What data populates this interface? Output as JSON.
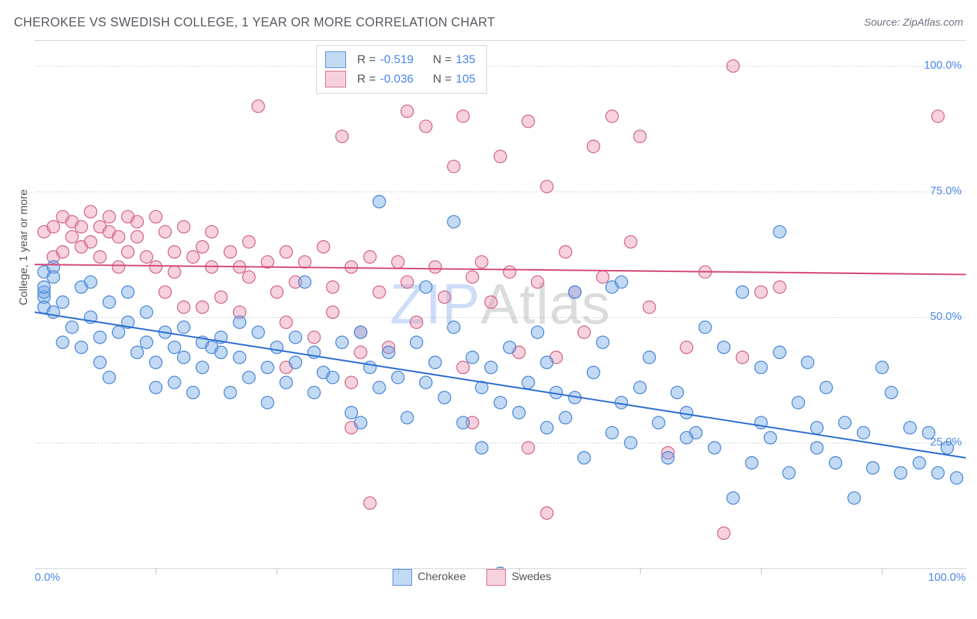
{
  "title": "CHEROKEE VS SWEDISH COLLEGE, 1 YEAR OR MORE CORRELATION CHART",
  "source": "Source: ZipAtlas.com",
  "ylabel": "College, 1 year or more",
  "watermark_a": "ZIP",
  "watermark_b": "Atlas",
  "chart": {
    "type": "scatter",
    "xlim": [
      0,
      100
    ],
    "ylim": [
      0,
      105
    ],
    "y_ticks": [
      {
        "v": 25,
        "label": "25.0%"
      },
      {
        "v": 50,
        "label": "50.0%"
      },
      {
        "v": 75,
        "label": "75.0%"
      },
      {
        "v": 100,
        "label": "100.0%"
      }
    ],
    "x_tick_left": "0.0%",
    "x_tick_right": "100.0%",
    "x_minor_ticks": [
      13,
      26,
      39,
      52,
      65,
      78,
      91
    ],
    "grid_color": "#d6d9de",
    "background_color": "#ffffff",
    "marker_radius": 9,
    "marker_stroke_width": 1.4,
    "trend_width": 2.2
  },
  "series": {
    "a": {
      "name": "Cherokee",
      "color_fill": "rgba(111,168,232,0.42)",
      "color_stroke": "#508bd8",
      "trend_color": "#2f6fd0",
      "R": "-0.519",
      "N": "135",
      "trend": {
        "y_at_x0": 51,
        "y_at_x100": 22
      },
      "points": [
        [
          1,
          59
        ],
        [
          1,
          54
        ],
        [
          1,
          52
        ],
        [
          1,
          55
        ],
        [
          2,
          51
        ],
        [
          2,
          60
        ],
        [
          3,
          45
        ],
        [
          3,
          53
        ],
        [
          4,
          48
        ],
        [
          5,
          56
        ],
        [
          5,
          44
        ],
        [
          6,
          57
        ],
        [
          6,
          50
        ],
        [
          7,
          46
        ],
        [
          7,
          41
        ],
        [
          8,
          53
        ],
        [
          8,
          38
        ],
        [
          9,
          47
        ],
        [
          10,
          55
        ],
        [
          10,
          49
        ],
        [
          11,
          43
        ],
        [
          12,
          45
        ],
        [
          12,
          51
        ],
        [
          13,
          41
        ],
        [
          13,
          36
        ],
        [
          14,
          47
        ],
        [
          15,
          37
        ],
        [
          15,
          44
        ],
        [
          16,
          42
        ],
        [
          16,
          48
        ],
        [
          17,
          35
        ],
        [
          18,
          45
        ],
        [
          18,
          40
        ],
        [
          19,
          44
        ],
        [
          20,
          43
        ],
        [
          20,
          46
        ],
        [
          21,
          35
        ],
        [
          22,
          42
        ],
        [
          22,
          49
        ],
        [
          23,
          38
        ],
        [
          24,
          47
        ],
        [
          25,
          40
        ],
        [
          25,
          33
        ],
        [
          26,
          44
        ],
        [
          27,
          37
        ],
        [
          28,
          46
        ],
        [
          28,
          41
        ],
        [
          29,
          57
        ],
        [
          30,
          35
        ],
        [
          30,
          43
        ],
        [
          31,
          39
        ],
        [
          32,
          38
        ],
        [
          33,
          45
        ],
        [
          34,
          31
        ],
        [
          35,
          47
        ],
        [
          35,
          29
        ],
        [
          36,
          40
        ],
        [
          37,
          73
        ],
        [
          37,
          36
        ],
        [
          38,
          43
        ],
        [
          39,
          38
        ],
        [
          40,
          30
        ],
        [
          41,
          45
        ],
        [
          42,
          37
        ],
        [
          42,
          56
        ],
        [
          43,
          41
        ],
        [
          44,
          34
        ],
        [
          45,
          48
        ],
        [
          45,
          69
        ],
        [
          46,
          29
        ],
        [
          47,
          42
        ],
        [
          48,
          36
        ],
        [
          48,
          24
        ],
        [
          49,
          40
        ],
        [
          50,
          33
        ],
        [
          50,
          -1
        ],
        [
          51,
          44
        ],
        [
          52,
          31
        ],
        [
          53,
          37
        ],
        [
          54,
          47
        ],
        [
          55,
          28
        ],
        [
          55,
          41
        ],
        [
          56,
          35
        ],
        [
          57,
          30
        ],
        [
          58,
          34
        ],
        [
          59,
          22
        ],
        [
          60,
          39
        ],
        [
          61,
          45
        ],
        [
          62,
          56
        ],
        [
          62,
          27
        ],
        [
          63,
          33
        ],
        [
          64,
          25
        ],
        [
          65,
          36
        ],
        [
          66,
          42
        ],
        [
          67,
          29
        ],
        [
          68,
          22
        ],
        [
          69,
          35
        ],
        [
          70,
          31
        ],
        [
          71,
          27
        ],
        [
          72,
          48
        ],
        [
          73,
          24
        ],
        [
          74,
          44
        ],
        [
          75,
          14
        ],
        [
          76,
          55
        ],
        [
          77,
          21
        ],
        [
          78,
          40
        ],
        [
          78,
          29
        ],
        [
          79,
          26
        ],
        [
          80,
          43
        ],
        [
          80,
          67
        ],
        [
          81,
          19
        ],
        [
          82,
          33
        ],
        [
          83,
          41
        ],
        [
          84,
          24
        ],
        [
          85,
          36
        ],
        [
          86,
          21
        ],
        [
          87,
          29
        ],
        [
          88,
          14
        ],
        [
          89,
          27
        ],
        [
          90,
          20
        ],
        [
          91,
          40
        ],
        [
          92,
          35
        ],
        [
          93,
          19
        ],
        [
          94,
          28
        ],
        [
          95,
          21
        ],
        [
          96,
          27
        ],
        [
          97,
          19
        ],
        [
          98,
          24
        ],
        [
          99,
          18
        ],
        [
          84,
          28
        ],
        [
          70,
          26
        ],
        [
          63,
          57
        ],
        [
          58,
          55
        ],
        [
          2,
          58
        ],
        [
          1,
          56
        ]
      ]
    },
    "b": {
      "name": "Swedes",
      "color_fill": "rgba(235,148,176,0.42)",
      "color_stroke": "#d46a8f",
      "trend_color": "#d44a7a",
      "R": "-0.036",
      "N": "105",
      "trend": {
        "y_at_x0": 60.5,
        "y_at_x100": 58.5
      },
      "points": [
        [
          1,
          67
        ],
        [
          2,
          68
        ],
        [
          2,
          62
        ],
        [
          3,
          70
        ],
        [
          3,
          63
        ],
        [
          4,
          66
        ],
        [
          4,
          69
        ],
        [
          5,
          64
        ],
        [
          5,
          68
        ],
        [
          6,
          71
        ],
        [
          6,
          65
        ],
        [
          7,
          62
        ],
        [
          7,
          68
        ],
        [
          8,
          67
        ],
        [
          8,
          70
        ],
        [
          9,
          66
        ],
        [
          9,
          60
        ],
        [
          10,
          70
        ],
        [
          10,
          63
        ],
        [
          11,
          66
        ],
        [
          11,
          69
        ],
        [
          12,
          62
        ],
        [
          13,
          70
        ],
        [
          13,
          60
        ],
        [
          14,
          67
        ],
        [
          14,
          55
        ],
        [
          15,
          63
        ],
        [
          15,
          59
        ],
        [
          16,
          68
        ],
        [
          16,
          52
        ],
        [
          17,
          62
        ],
        [
          18,
          64
        ],
        [
          18,
          52
        ],
        [
          19,
          60
        ],
        [
          19,
          67
        ],
        [
          20,
          54
        ],
        [
          21,
          63
        ],
        [
          22,
          51
        ],
        [
          22,
          60
        ],
        [
          23,
          58
        ],
        [
          23,
          65
        ],
        [
          24,
          92
        ],
        [
          25,
          61
        ],
        [
          26,
          55
        ],
        [
          27,
          49
        ],
        [
          27,
          63
        ],
        [
          28,
          57
        ],
        [
          29,
          61
        ],
        [
          30,
          46
        ],
        [
          31,
          64
        ],
        [
          32,
          56
        ],
        [
          32,
          51
        ],
        [
          33,
          86
        ],
        [
          34,
          60
        ],
        [
          35,
          47
        ],
        [
          36,
          62
        ],
        [
          37,
          55
        ],
        [
          38,
          44
        ],
        [
          39,
          61
        ],
        [
          40,
          91
        ],
        [
          40,
          57
        ],
        [
          41,
          49
        ],
        [
          42,
          88
        ],
        [
          42,
          101
        ],
        [
          43,
          60
        ],
        [
          44,
          54
        ],
        [
          45,
          80
        ],
        [
          46,
          90
        ],
        [
          46,
          40
        ],
        [
          47,
          58
        ],
        [
          47,
          29
        ],
        [
          48,
          61
        ],
        [
          49,
          53
        ],
        [
          50,
          82
        ],
        [
          51,
          59
        ],
        [
          52,
          43
        ],
        [
          53,
          89
        ],
        [
          53,
          24
        ],
        [
          54,
          57
        ],
        [
          55,
          76
        ],
        [
          55,
          11
        ],
        [
          56,
          42
        ],
        [
          57,
          63
        ],
        [
          58,
          55
        ],
        [
          59,
          47
        ],
        [
          60,
          84
        ],
        [
          61,
          58
        ],
        [
          62,
          90
        ],
        [
          64,
          65
        ],
        [
          65,
          86
        ],
        [
          66,
          52
        ],
        [
          68,
          23
        ],
        [
          70,
          44
        ],
        [
          72,
          59
        ],
        [
          74,
          7
        ],
        [
          75,
          100
        ],
        [
          76,
          42
        ],
        [
          78,
          55
        ],
        [
          80,
          56
        ],
        [
          97,
          90
        ],
        [
          34,
          28
        ],
        [
          36,
          13
        ],
        [
          35,
          43
        ],
        [
          34,
          37
        ],
        [
          27,
          40
        ]
      ]
    }
  }
}
